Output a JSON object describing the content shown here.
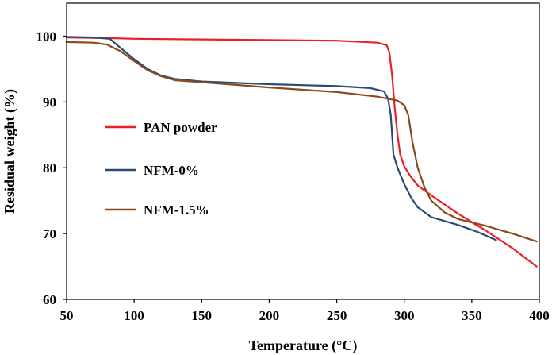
{
  "chart_data": {
    "type": "line",
    "title": "",
    "xlabel": "Temperature (°C)",
    "ylabel": "Residual weight (%)",
    "xlim": [
      50,
      400
    ],
    "ylim": [
      60,
      105
    ],
    "xticks": [
      50,
      100,
      150,
      200,
      250,
      300,
      350,
      400
    ],
    "yticks": [
      60,
      70,
      80,
      90,
      100
    ],
    "grid": false,
    "legend_position": "center-left",
    "series": [
      {
        "name": "PAN powder",
        "color": "#e8202a",
        "points": [
          [
            50,
            99.8
          ],
          [
            80,
            99.7
          ],
          [
            100,
            99.6
          ],
          [
            150,
            99.5
          ],
          [
            200,
            99.4
          ],
          [
            250,
            99.3
          ],
          [
            280,
            99.0
          ],
          [
            287,
            98.6
          ],
          [
            289,
            97.5
          ],
          [
            291,
            94
          ],
          [
            293,
            89
          ],
          [
            295,
            85
          ],
          [
            297,
            82
          ],
          [
            300,
            80.2
          ],
          [
            305,
            78.6
          ],
          [
            310,
            77.3
          ],
          [
            320,
            75.8
          ],
          [
            340,
            73
          ],
          [
            360,
            70.5
          ],
          [
            380,
            67.8
          ],
          [
            398,
            65
          ]
        ]
      },
      {
        "name": "NFM-0%",
        "color": "#2b4a6f",
        "points": [
          [
            50,
            99.9
          ],
          [
            70,
            99.8
          ],
          [
            82,
            99.6
          ],
          [
            90,
            98.2
          ],
          [
            100,
            96.5
          ],
          [
            110,
            95
          ],
          [
            120,
            94
          ],
          [
            130,
            93.5
          ],
          [
            150,
            93.1
          ],
          [
            200,
            92.7
          ],
          [
            250,
            92.4
          ],
          [
            275,
            92.1
          ],
          [
            285,
            91.6
          ],
          [
            288,
            90.5
          ],
          [
            290,
            88
          ],
          [
            292,
            82
          ],
          [
            295,
            80
          ],
          [
            300,
            77.5
          ],
          [
            305,
            75.5
          ],
          [
            310,
            74
          ],
          [
            320,
            72.5
          ],
          [
            340,
            71.3
          ],
          [
            355,
            70.2
          ],
          [
            368,
            69
          ]
        ]
      },
      {
        "name": "NFM-1.5%",
        "color": "#8b4a1c",
        "points": [
          [
            50,
            99.1
          ],
          [
            70,
            99.0
          ],
          [
            80,
            98.7
          ],
          [
            90,
            97.7
          ],
          [
            100,
            96.2
          ],
          [
            110,
            94.8
          ],
          [
            120,
            93.9
          ],
          [
            130,
            93.3
          ],
          [
            150,
            93
          ],
          [
            200,
            92.2
          ],
          [
            250,
            91.5
          ],
          [
            280,
            90.8
          ],
          [
            295,
            90.2
          ],
          [
            300,
            89.5
          ],
          [
            303,
            88
          ],
          [
            306,
            84
          ],
          [
            310,
            80
          ],
          [
            315,
            77
          ],
          [
            320,
            75
          ],
          [
            330,
            73.2
          ],
          [
            340,
            72.2
          ],
          [
            360,
            71.2
          ],
          [
            380,
            70
          ],
          [
            398,
            68.8
          ]
        ]
      }
    ]
  }
}
